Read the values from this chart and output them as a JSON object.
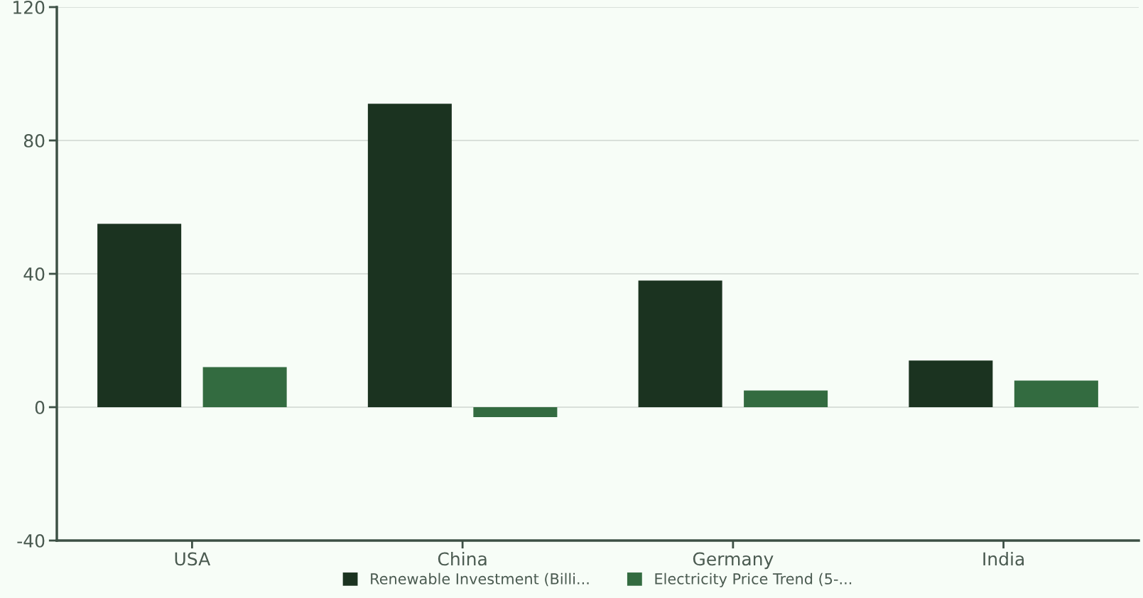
{
  "chart_data": {
    "type": "bar",
    "categories": [
      "USA",
      "China",
      "Germany",
      "India"
    ],
    "series": [
      {
        "name": "Renewable Investment (Billi...",
        "color": "#1b3320",
        "values": [
          55,
          91,
          38,
          14
        ]
      },
      {
        "name": "Electricity Price Trend (5-...",
        "color": "#336b40",
        "values": [
          12,
          -3,
          5,
          8
        ]
      }
    ],
    "ylim": [
      -40,
      120
    ],
    "yticks": [
      -40,
      0,
      40,
      80,
      120
    ],
    "grid": "y",
    "legend": "bottom"
  }
}
